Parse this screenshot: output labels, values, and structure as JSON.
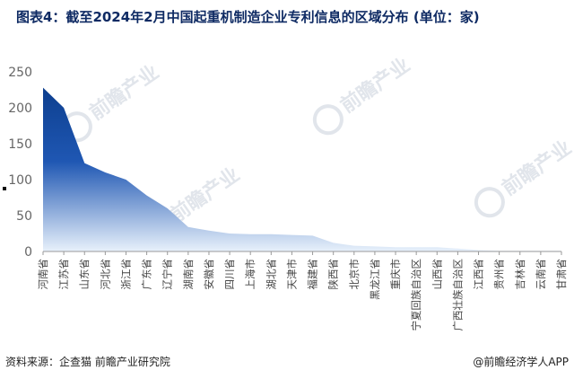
{
  "title": "图表4：截至2024年2月中国起重机制造企业专利信息的区域分布 (单位：家)",
  "footer": {
    "source": "资料来源：企查猫 前瞻产业研究院",
    "brand": "@前瞻经济学人APP"
  },
  "watermark": "前瞻产业",
  "chart_data": {
    "type": "area",
    "title": "图表4：截至2024年2月中国起重机制造企业专利信息的区域分布 (单位：家)",
    "xlabel": "",
    "ylabel": "",
    "ylim": [
      0,
      250
    ],
    "yticks": [
      0,
      50,
      100,
      150,
      200,
      250
    ],
    "grid": false,
    "categories": [
      "河南省",
      "江苏省",
      "山东省",
      "河北省",
      "浙江省",
      "广东省",
      "辽宁省",
      "湖南省",
      "安徽省",
      "四川省",
      "上海市",
      "湖北省",
      "天津市",
      "福建省",
      "陕西省",
      "北京市",
      "黑龙江省",
      "重庆市",
      "宁夏回族自治区",
      "山西省",
      "广西壮族自治区",
      "江西省",
      "贵州省",
      "吉林省",
      "云南省",
      "甘肃省"
    ],
    "values": [
      228,
      200,
      123,
      110,
      100,
      78,
      60,
      34,
      29,
      25,
      24,
      24,
      23,
      22,
      12,
      8,
      7,
      6,
      6,
      6,
      4,
      2,
      1,
      1,
      1,
      1
    ],
    "colors": {
      "top": "#0d3f8f",
      "bottom": "#e8f1fb"
    }
  }
}
